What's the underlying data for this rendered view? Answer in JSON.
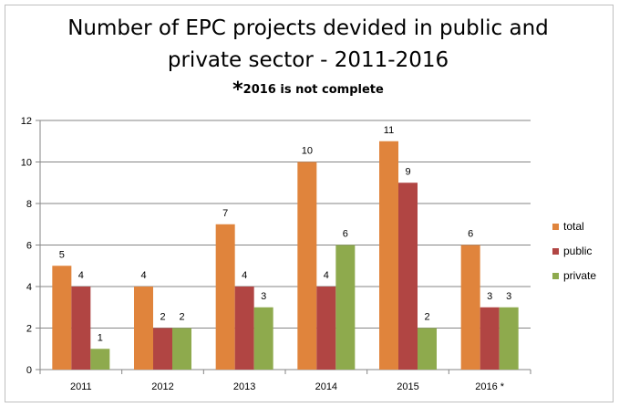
{
  "chart_data": {
    "type": "bar",
    "title_line1": "Number of EPC projects devided in public and",
    "title_line2": "private sector - 2011-2016",
    "subtitle_star": "*",
    "subtitle_note": "2016 is not complete",
    "categories": [
      "2011",
      "2012",
      "2013",
      "2014",
      "2015",
      "2016 *"
    ],
    "series": [
      {
        "name": "total",
        "color": "#E0843C",
        "values": [
          5,
          4,
          7,
          10,
          11,
          6
        ]
      },
      {
        "name": "public",
        "color": "#B14543",
        "values": [
          4,
          2,
          4,
          4,
          9,
          3
        ]
      },
      {
        "name": "private",
        "color": "#8EAA4D",
        "values": [
          1,
          2,
          3,
          6,
          2,
          3
        ]
      }
    ],
    "ylim": [
      0,
      12
    ],
    "yticks": [
      "0",
      "2",
      "4",
      "6",
      "8",
      "10",
      "12"
    ],
    "grid": true,
    "legend_position": "right",
    "xlabel": "",
    "ylabel": ""
  }
}
